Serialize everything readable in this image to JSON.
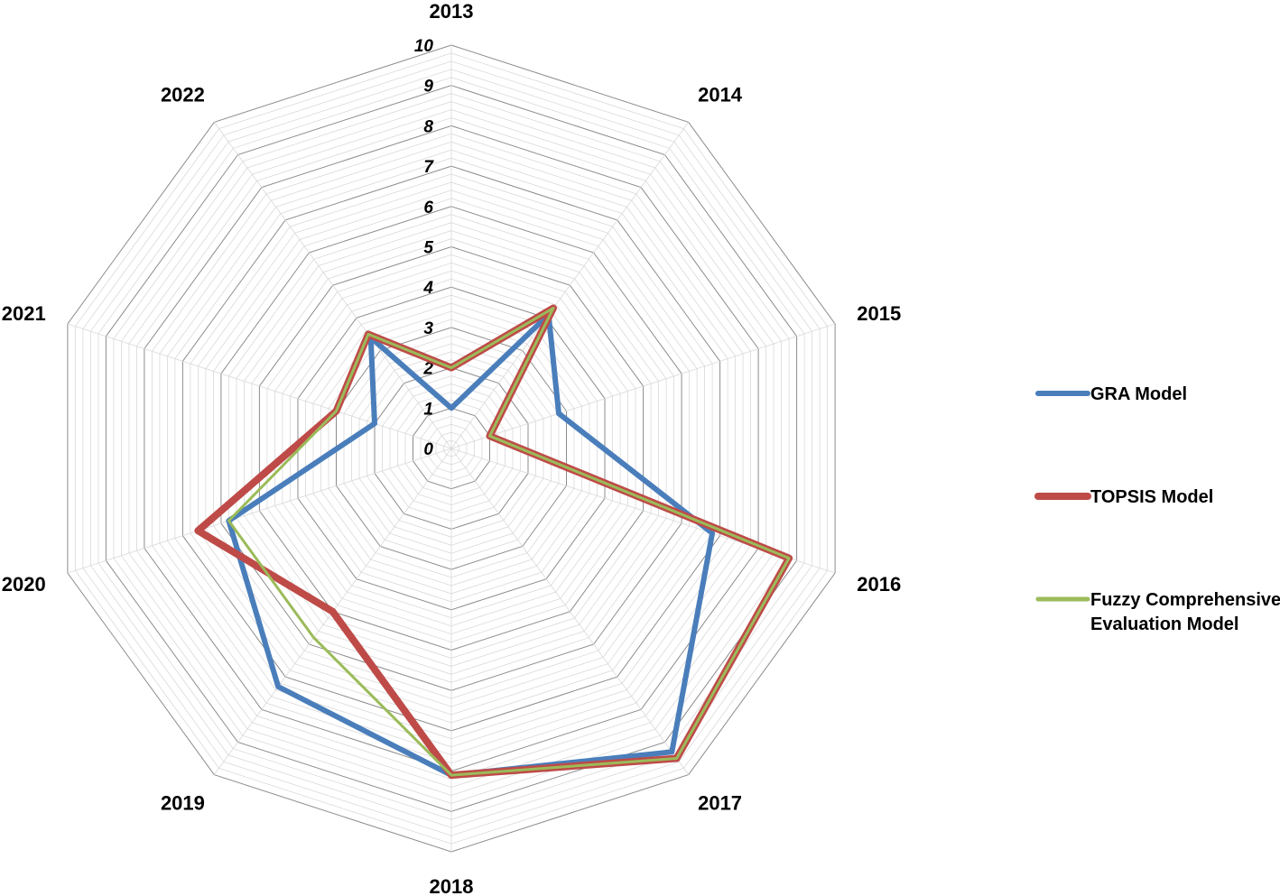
{
  "chart_data": {
    "type": "radar",
    "title": "",
    "categories": [
      "2013",
      "2014",
      "2015",
      "2016",
      "2017",
      "2018",
      "2019",
      "2020",
      "2021",
      "2022"
    ],
    "rlim": [
      0,
      10
    ],
    "ticks": [
      "0",
      "1",
      "2",
      "3",
      "4",
      "5",
      "6",
      "7",
      "8",
      "9",
      "10"
    ],
    "grid": true,
    "legend_position": "right",
    "series": [
      {
        "name": "GRA Model",
        "color": "#4a7ebb",
        "values": [
          1,
          4.1,
          2.8,
          6.8,
          9.3,
          8.1,
          7.3,
          5.8,
          2.0,
          3.4
        ]
      },
      {
        "name": "TOPSIS Model",
        "color": "#be4b48",
        "values": [
          2,
          4.3,
          1.0,
          8.8,
          9.5,
          8.1,
          5.0,
          6.6,
          3.0,
          3.5
        ]
      },
      {
        "name": "Fuzzy Comprehensive Evaluation Model",
        "legend_lines": [
          "Fuzzy Comprehensive",
          "Evaluation Model"
        ],
        "color": "#9bbb59",
        "values": [
          2,
          4.3,
          1.0,
          8.8,
          9.5,
          8.1,
          5.8,
          5.8,
          3.0,
          3.5
        ]
      }
    ]
  }
}
